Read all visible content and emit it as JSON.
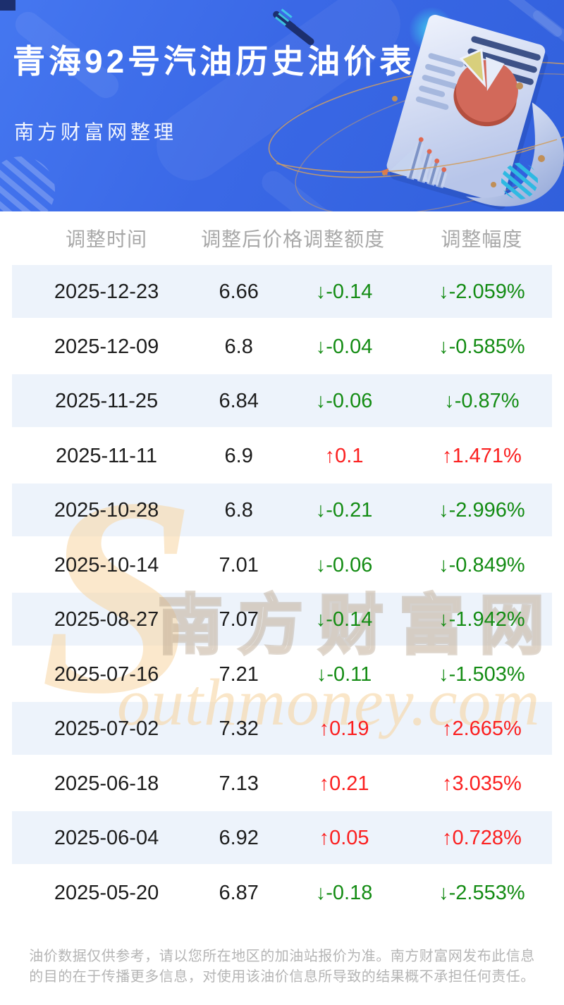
{
  "banner": {
    "title": "青海92号汽油历史油价表",
    "subtitle": "南方财富网整理"
  },
  "table": {
    "columns": [
      "调整时间",
      "调整后价格",
      "调整额度",
      "调整幅度"
    ],
    "rows": [
      {
        "date": "2025-12-23",
        "price": "6.66",
        "change": "↓-0.14",
        "pct": "↓-2.059%",
        "trend": "down"
      },
      {
        "date": "2025-12-09",
        "price": "6.8",
        "change": "↓-0.04",
        "pct": "↓-0.585%",
        "trend": "down"
      },
      {
        "date": "2025-11-25",
        "price": "6.84",
        "change": "↓-0.06",
        "pct": "↓-0.87%",
        "trend": "down"
      },
      {
        "date": "2025-11-11",
        "price": "6.9",
        "change": "↑0.1",
        "pct": "↑1.471%",
        "trend": "up"
      },
      {
        "date": "2025-10-28",
        "price": "6.8",
        "change": "↓-0.21",
        "pct": "↓-2.996%",
        "trend": "down"
      },
      {
        "date": "2025-10-14",
        "price": "7.01",
        "change": "↓-0.06",
        "pct": "↓-0.849%",
        "trend": "down"
      },
      {
        "date": "2025-08-27",
        "price": "7.07",
        "change": "↓-0.14",
        "pct": "↓-1.942%",
        "trend": "down"
      },
      {
        "date": "2025-07-16",
        "price": "7.21",
        "change": "↓-0.11",
        "pct": "↓-1.503%",
        "trend": "down"
      },
      {
        "date": "2025-07-02",
        "price": "7.32",
        "change": "↑0.19",
        "pct": "↑2.665%",
        "trend": "up"
      },
      {
        "date": "2025-06-18",
        "price": "7.13",
        "change": "↑0.21",
        "pct": "↑3.035%",
        "trend": "up"
      },
      {
        "date": "2025-06-04",
        "price": "6.92",
        "change": "↑0.05",
        "pct": "↑0.728%",
        "trend": "up"
      },
      {
        "date": "2025-05-20",
        "price": "6.87",
        "change": "↓-0.18",
        "pct": "↓-2.553%",
        "trend": "down"
      }
    ]
  },
  "watermark": {
    "initial": "S",
    "cn": "南方财富网",
    "en": "outhmoney.com"
  },
  "footer": {
    "disclaimer": "油价数据仅供参考，请以您所在地区的加油站报价为准。南方财富网发布此信息的目的在于传播更多信息，对使用该油价信息所导致的结果概不承担任何责任。"
  },
  "colors": {
    "banner_blue": "#3a68e6",
    "row_stripe": "#edf3fb",
    "up_red": "#fb1f1f",
    "down_green": "#148c14",
    "header_gray": "#a8a8a8",
    "footer_gray": "#b5b5b5",
    "watermark_tan": "#eec79a"
  }
}
